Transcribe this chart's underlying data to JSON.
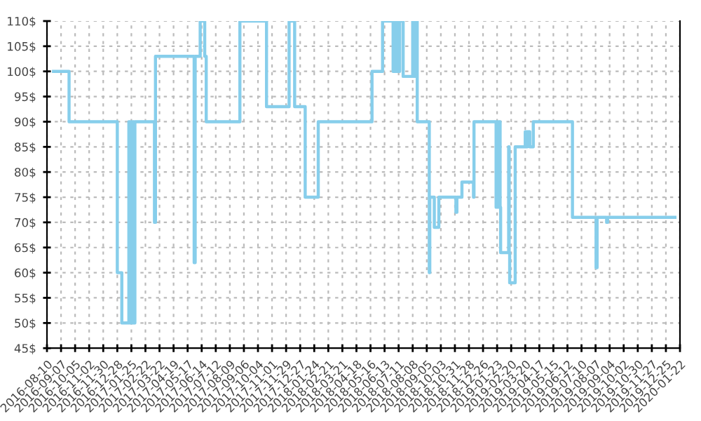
{
  "chart_data": {
    "type": "step",
    "color": "#87ceeb",
    "grid": true,
    "line_style": "solid",
    "marker": "none",
    "x": [
      "2016-08-23",
      "2016-09-23",
      "2016-12-28",
      "2017-01-06",
      "2017-01-20",
      "2017-01-22",
      "2017-01-24",
      "2017-01-26",
      "2017-01-28",
      "2017-01-30",
      "2017-02-01",
      "2017-02-02",
      "2017-03-12",
      "2017-03-14",
      "2017-05-30",
      "2017-06-01",
      "2017-06-11",
      "2017-06-20",
      "2017-06-23",
      "2017-08-29",
      "2017-10-21",
      "2017-12-05",
      "2017-12-16",
      "2018-01-06",
      "2018-02-01",
      "2018-05-19",
      "2018-06-09",
      "2018-06-30",
      "2018-07-02",
      "2018-07-04",
      "2018-07-06",
      "2018-07-08",
      "2018-07-13",
      "2018-07-20",
      "2018-08-08",
      "2018-08-10",
      "2018-08-12",
      "2018-08-17",
      "2018-09-10",
      "2018-09-11",
      "2018-09-20",
      "2018-09-29",
      "2018-11-02",
      "2018-11-04",
      "2018-11-14",
      "2018-12-07",
      "2018-12-08",
      "2019-01-21",
      "2019-01-23",
      "2019-01-25",
      "2019-01-27",
      "2019-01-29",
      "2019-01-30",
      "2019-02-15",
      "2019-02-16",
      "2019-02-17",
      "2019-02-28",
      "2019-03-20",
      "2019-03-22",
      "2019-03-24",
      "2019-03-29",
      "2019-04-05",
      "2019-06-22",
      "2019-08-08",
      "2019-08-10",
      "2019-08-29",
      "2019-08-31",
      "2020-01-12"
    ],
    "values": [
      100,
      90,
      60,
      50,
      90,
      50,
      90,
      50,
      90,
      50,
      90,
      90,
      70,
      103,
      62,
      103,
      110,
      103,
      90,
      110,
      93,
      110,
      93,
      75,
      90,
      100,
      110,
      100,
      110,
      100,
      110,
      100,
      110,
      99,
      110,
      99,
      110,
      90,
      60,
      75,
      69,
      75,
      72,
      75,
      78,
      75,
      90,
      73,
      90,
      73,
      90,
      73,
      64,
      85,
      64,
      58,
      85,
      88,
      85,
      88,
      85,
      90,
      71,
      61,
      71,
      70,
      71,
      71
    ],
    "xlim": [
      "2016-08-10",
      "2020-01-22"
    ],
    "xticks": [
      "2016-08-10",
      "2016-09-07",
      "2016-10-05",
      "2016-11-02",
      "2016-11-30",
      "2016-12-28",
      "2017-01-25",
      "2017-02-22",
      "2017-03-22",
      "2017-04-19",
      "2017-05-17",
      "2017-06-14",
      "2017-07-12",
      "2017-08-09",
      "2017-09-06",
      "2017-10-04",
      "2017-11-01",
      "2017-11-29",
      "2017-12-27",
      "2018-01-24",
      "2018-02-21",
      "2018-03-21",
      "2018-04-18",
      "2018-05-16",
      "2018-06-13",
      "2018-07-11",
      "2018-08-08",
      "2018-09-05",
      "2018-10-03",
      "2018-10-31",
      "2018-11-28",
      "2018-12-26",
      "2019-01-23",
      "2019-02-20",
      "2019-03-20",
      "2019-04-17",
      "2019-05-15",
      "2019-06-12",
      "2019-07-10",
      "2019-08-07",
      "2019-09-04",
      "2019-10-02",
      "2019-10-30",
      "2019-11-27",
      "2019-12-25",
      "2020-01-22"
    ],
    "ylim": [
      45,
      110
    ],
    "yticks": [
      {
        "value": 45,
        "label": "45$"
      },
      {
        "value": 50,
        "label": "50$"
      },
      {
        "value": 55,
        "label": "55$"
      },
      {
        "value": 60,
        "label": "60$"
      },
      {
        "value": 65,
        "label": "65$"
      },
      {
        "value": 70,
        "label": "70$"
      },
      {
        "value": 75,
        "label": "75$"
      },
      {
        "value": 80,
        "label": "80$"
      },
      {
        "value": 85,
        "label": "85$"
      },
      {
        "value": 90,
        "label": "90$"
      },
      {
        "value": 95,
        "label": "95$"
      },
      {
        "value": 100,
        "label": "100$"
      },
      {
        "value": 105,
        "label": "105$"
      },
      {
        "value": 110,
        "label": "110$"
      }
    ]
  }
}
